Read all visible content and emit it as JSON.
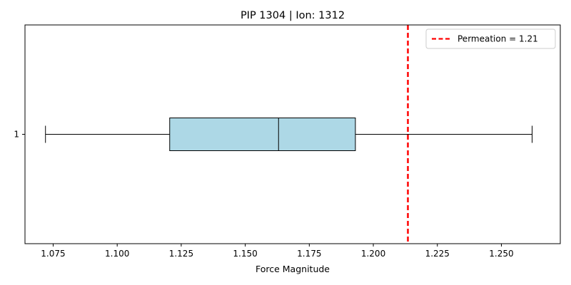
{
  "chart_data": {
    "type": "boxplot",
    "orientation": "horizontal",
    "title": "PIP 1304 | Ion: 1312",
    "xlabel": "Force Magnitude",
    "ylabel": "",
    "xlim": [
      1.064,
      1.273
    ],
    "xticks": [
      1.075,
      1.1,
      1.125,
      1.15,
      1.175,
      1.2,
      1.225,
      1.25
    ],
    "xtick_labels": [
      "1.075",
      "1.100",
      "1.125",
      "1.150",
      "1.175",
      "1.200",
      "1.225",
      "1.250"
    ],
    "categories": [
      "1"
    ],
    "boxes": [
      {
        "category": "1",
        "whisker_low": 1.072,
        "q1": 1.1205,
        "median": 1.163,
        "q3": 1.193,
        "whisker_high": 1.262
      }
    ],
    "box_color": "#add8e6",
    "reference_line": {
      "value": 1.2135,
      "color": "#ff0000",
      "style": "dashed"
    },
    "legend": {
      "label": "Permeation = 1.21",
      "placement": "top-right"
    },
    "grid": false
  }
}
